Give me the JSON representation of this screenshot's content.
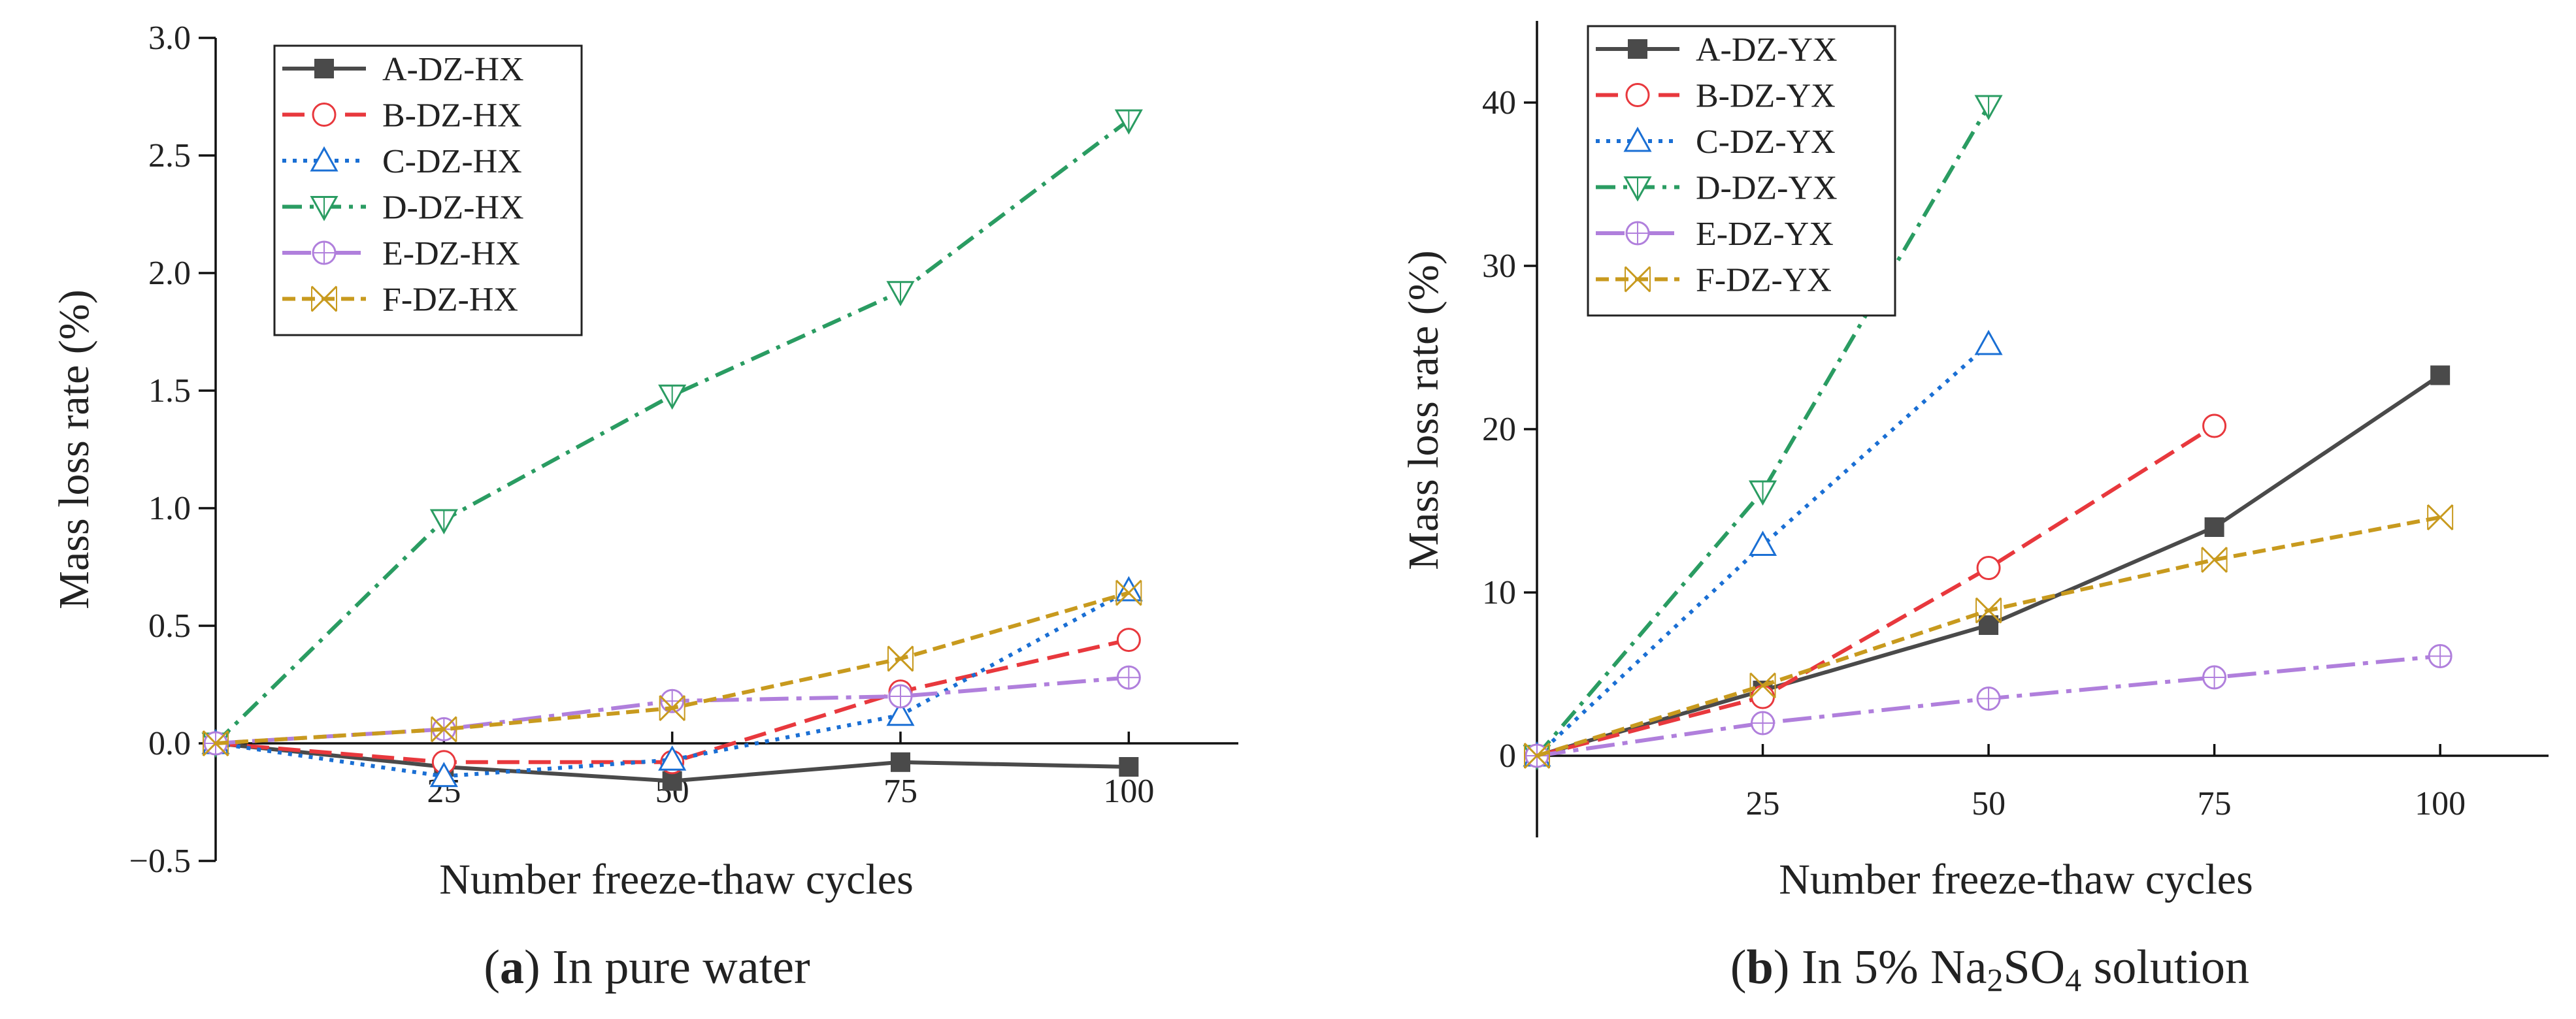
{
  "figure": {
    "panels": [
      {
        "id": "a",
        "caption_letter": "a",
        "caption_text": "In pure water",
        "caption_prefix": "(",
        "caption_suffix": ")"
      },
      {
        "id": "b",
        "caption_letter": "b",
        "caption_prefix": "(",
        "caption_suffix": ")",
        "caption_text_1": "In 5% Na",
        "caption_sub_1": "2",
        "caption_text_2": "SO",
        "caption_sub_2": "4",
        "caption_text_3": " solution"
      }
    ]
  },
  "chart_data": [
    {
      "type": "line",
      "panel": "a",
      "title": "",
      "xlabel": "Number freeze-thaw cycles",
      "ylabel": "Mass loss rate (%)",
      "xlim": [
        0,
        112
      ],
      "ylim": [
        -0.5,
        3.0
      ],
      "xticks": [
        25,
        50,
        75,
        100
      ],
      "xtick_labels": [
        "25",
        "50",
        "75",
        "100"
      ],
      "yticks": [
        -0.5,
        0.0,
        0.5,
        1.0,
        1.5,
        2.0,
        2.5,
        3.0
      ],
      "ytick_labels": [
        "−0.5",
        "0.0",
        "0.5",
        "1.0",
        "1.5",
        "2.0",
        "2.5",
        "3.0"
      ],
      "legend_position": "top-left",
      "series": [
        {
          "name": "A-DZ-HX",
          "color": "#4a4a4a",
          "marker": "square-filled",
          "dash": "solid",
          "x": [
            0,
            25,
            50,
            75,
            100
          ],
          "values": [
            0.0,
            -0.1,
            -0.16,
            -0.08,
            -0.1
          ]
        },
        {
          "name": "B-DZ-HX",
          "color": "#e8383d",
          "marker": "circle",
          "dash": "dash",
          "x": [
            0,
            25,
            50,
            75,
            100
          ],
          "values": [
            0.0,
            -0.08,
            -0.08,
            0.22,
            0.44
          ]
        },
        {
          "name": "C-DZ-HX",
          "color": "#1a6fd4",
          "marker": "triangle-up",
          "dash": "dot",
          "x": [
            0,
            25,
            50,
            75,
            100
          ],
          "values": [
            0.0,
            -0.14,
            -0.07,
            0.12,
            0.65
          ]
        },
        {
          "name": "D-DZ-HX",
          "color": "#2a9c62",
          "marker": "triangle-down",
          "dash": "dashdot",
          "x": [
            0,
            25,
            50,
            75,
            100
          ],
          "values": [
            0.0,
            0.95,
            1.48,
            1.92,
            2.65
          ]
        },
        {
          "name": "E-DZ-HX",
          "color": "#b07fdc",
          "marker": "circle-plus",
          "dash": "longdash",
          "x": [
            0,
            25,
            50,
            75,
            100
          ],
          "values": [
            0.0,
            0.06,
            0.18,
            0.2,
            0.28
          ]
        },
        {
          "name": "F-DZ-HX",
          "color": "#c89a1e",
          "marker": "x-box",
          "dash": "shortdash",
          "x": [
            0,
            25,
            50,
            75,
            100
          ],
          "values": [
            0.0,
            0.06,
            0.15,
            0.36,
            0.64
          ]
        }
      ]
    },
    {
      "type": "line",
      "panel": "b",
      "title": "",
      "xlabel": "Number freeze-thaw cycles",
      "ylabel": "Mass loss rate (%)",
      "xlim": [
        0,
        112
      ],
      "ylim": [
        -5,
        45
      ],
      "xticks": [
        25,
        50,
        75,
        100
      ],
      "xtick_labels": [
        "25",
        "50",
        "75",
        "100"
      ],
      "yticks": [
        0,
        10,
        20,
        30,
        40
      ],
      "ytick_labels": [
        "0",
        "10",
        "20",
        "30",
        "40"
      ],
      "legend_position": "top-left",
      "series": [
        {
          "name": "A-DZ-YX",
          "color": "#4a4a4a",
          "marker": "square-filled",
          "dash": "solid",
          "x": [
            0,
            25,
            50,
            75,
            100
          ],
          "values": [
            0.0,
            4.0,
            8.0,
            14.0,
            23.3
          ]
        },
        {
          "name": "B-DZ-YX",
          "color": "#e8383d",
          "marker": "circle",
          "dash": "dash",
          "x": [
            0,
            25,
            50,
            75
          ],
          "values": [
            0.0,
            3.6,
            11.5,
            20.2
          ]
        },
        {
          "name": "C-DZ-YX",
          "color": "#1a6fd4",
          "marker": "triangle-up",
          "dash": "dot",
          "x": [
            0,
            25,
            50
          ],
          "values": [
            0.0,
            12.9,
            25.2
          ]
        },
        {
          "name": "D-DZ-YX",
          "color": "#2a9c62",
          "marker": "triangle-down",
          "dash": "dashdot",
          "x": [
            0,
            25,
            50
          ],
          "values": [
            0.0,
            16.2,
            39.8
          ]
        },
        {
          "name": "E-DZ-YX",
          "color": "#b07fdc",
          "marker": "circle-plus",
          "dash": "longdash",
          "x": [
            0,
            25,
            50,
            75,
            100
          ],
          "values": [
            0.0,
            2.0,
            3.5,
            4.8,
            6.1
          ]
        },
        {
          "name": "F-DZ-YX",
          "color": "#c89a1e",
          "marker": "x-box",
          "dash": "shortdash",
          "x": [
            0,
            25,
            50,
            75,
            100
          ],
          "values": [
            0.0,
            4.3,
            8.9,
            12.0,
            14.6
          ]
        }
      ]
    }
  ]
}
